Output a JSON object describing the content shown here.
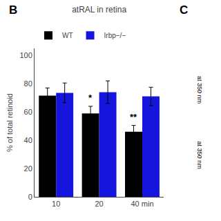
{
  "chart_data": {
    "type": "bar",
    "title": "atRAL in retina",
    "ylabel": "% of total retinoid",
    "categories": [
      "10",
      "20",
      "40 min"
    ],
    "series": [
      {
        "name": "WT",
        "color": "#000000",
        "values": [
          71.5,
          59.0,
          46.0
        ],
        "errors": [
          5.5,
          5.0,
          4.5
        ]
      },
      {
        "name": "Irbp−/−",
        "color": "#1515dd",
        "values": [
          73.5,
          74.0,
          71.0
        ],
        "errors": [
          7.0,
          8.0,
          6.5
        ]
      }
    ],
    "ylim": [
      0,
      105
    ],
    "yticks": [
      0,
      20,
      40,
      60,
      80,
      100
    ],
    "grid": false,
    "legend": "upper left",
    "annotations": [
      {
        "text": "*",
        "category": "20",
        "series": "WT"
      },
      {
        "text": "**",
        "category": "40 min",
        "series": "WT"
      },
      {
        "text": "B"
      },
      {
        "text": "C"
      },
      {
        "text": "at 350 nm"
      },
      {
        "text": "at 350 nm"
      }
    ]
  }
}
